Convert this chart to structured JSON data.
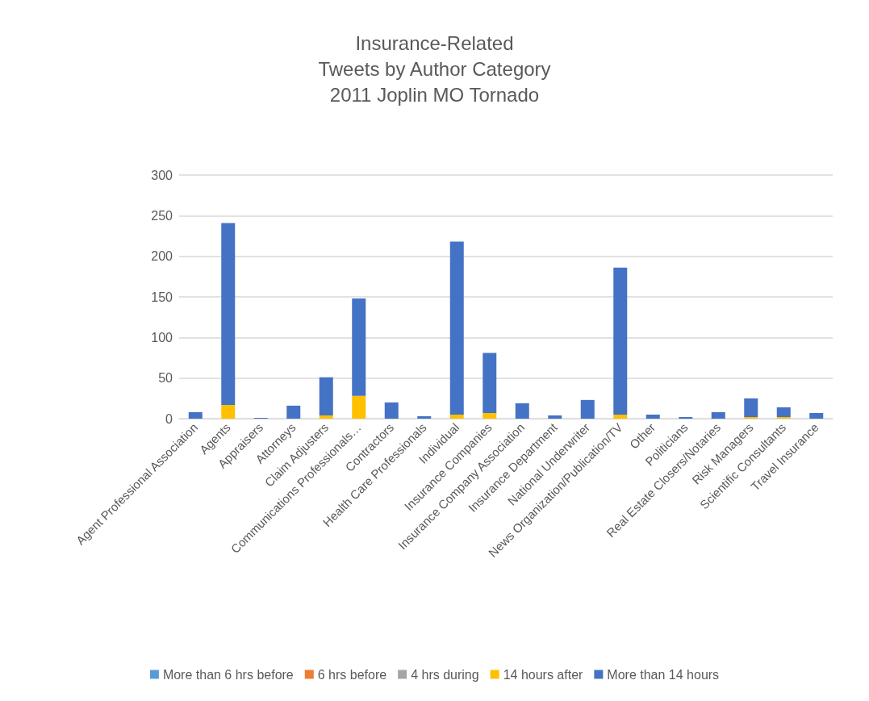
{
  "chart_data": {
    "type": "bar",
    "title": "Insurance-Related\nTweets by Author Category\n2011 Joplin MO Tornado",
    "stacked": true,
    "categories": [
      "Agent Professional Association",
      "Agents",
      "Appraisers",
      "Attorneys",
      "Claim Adjusters",
      "Communications Professionals…",
      "Contractors",
      "Health Care Professionals",
      "Individual",
      "Insurance Companies",
      "Insurance Company Association",
      "Insurance Department",
      "National Underwriter",
      "News Organization/Publication/TV",
      "Other",
      "Politicians",
      "Real Estate Closers/Notaries",
      "Risk Managers",
      "Scientific Consultants",
      "Travel Insurance"
    ],
    "series": [
      {
        "name": "More than 6 hrs before",
        "color": "#5b9bd5",
        "values": [
          0,
          0,
          0,
          0,
          0,
          0,
          0,
          0,
          0,
          0,
          0,
          0,
          0,
          0,
          0,
          0,
          0,
          0,
          0,
          0
        ]
      },
      {
        "name": "6 hrs before",
        "color": "#ed7d31",
        "values": [
          0,
          0,
          0,
          0,
          0,
          0,
          0,
          0,
          0,
          0,
          0,
          0,
          0,
          0,
          0,
          0,
          0,
          0,
          0,
          0
        ]
      },
      {
        "name": "4 hrs during",
        "color": "#a5a5a5",
        "values": [
          0,
          0,
          0,
          0,
          0,
          0,
          0,
          0,
          0,
          0,
          0,
          0,
          0,
          0,
          0,
          0,
          0,
          0,
          0,
          0
        ]
      },
      {
        "name": "14 hours after",
        "color": "#ffc000",
        "values": [
          0,
          17,
          0,
          0,
          4,
          28,
          0,
          0,
          5,
          7,
          0,
          0,
          0,
          5,
          0,
          0,
          0,
          2,
          2,
          0
        ]
      },
      {
        "name": "More than 14 hours",
        "color": "#4472c4",
        "values": [
          8,
          224,
          1,
          16,
          47,
          120,
          20,
          3,
          213,
          74,
          19,
          4,
          23,
          181,
          5,
          2,
          8,
          23,
          12,
          7
        ]
      }
    ],
    "ylim": [
      0,
      300
    ],
    "yticks": [
      0,
      50,
      100,
      150,
      200,
      250,
      300
    ],
    "grid": "y",
    "legend": "bottom"
  }
}
